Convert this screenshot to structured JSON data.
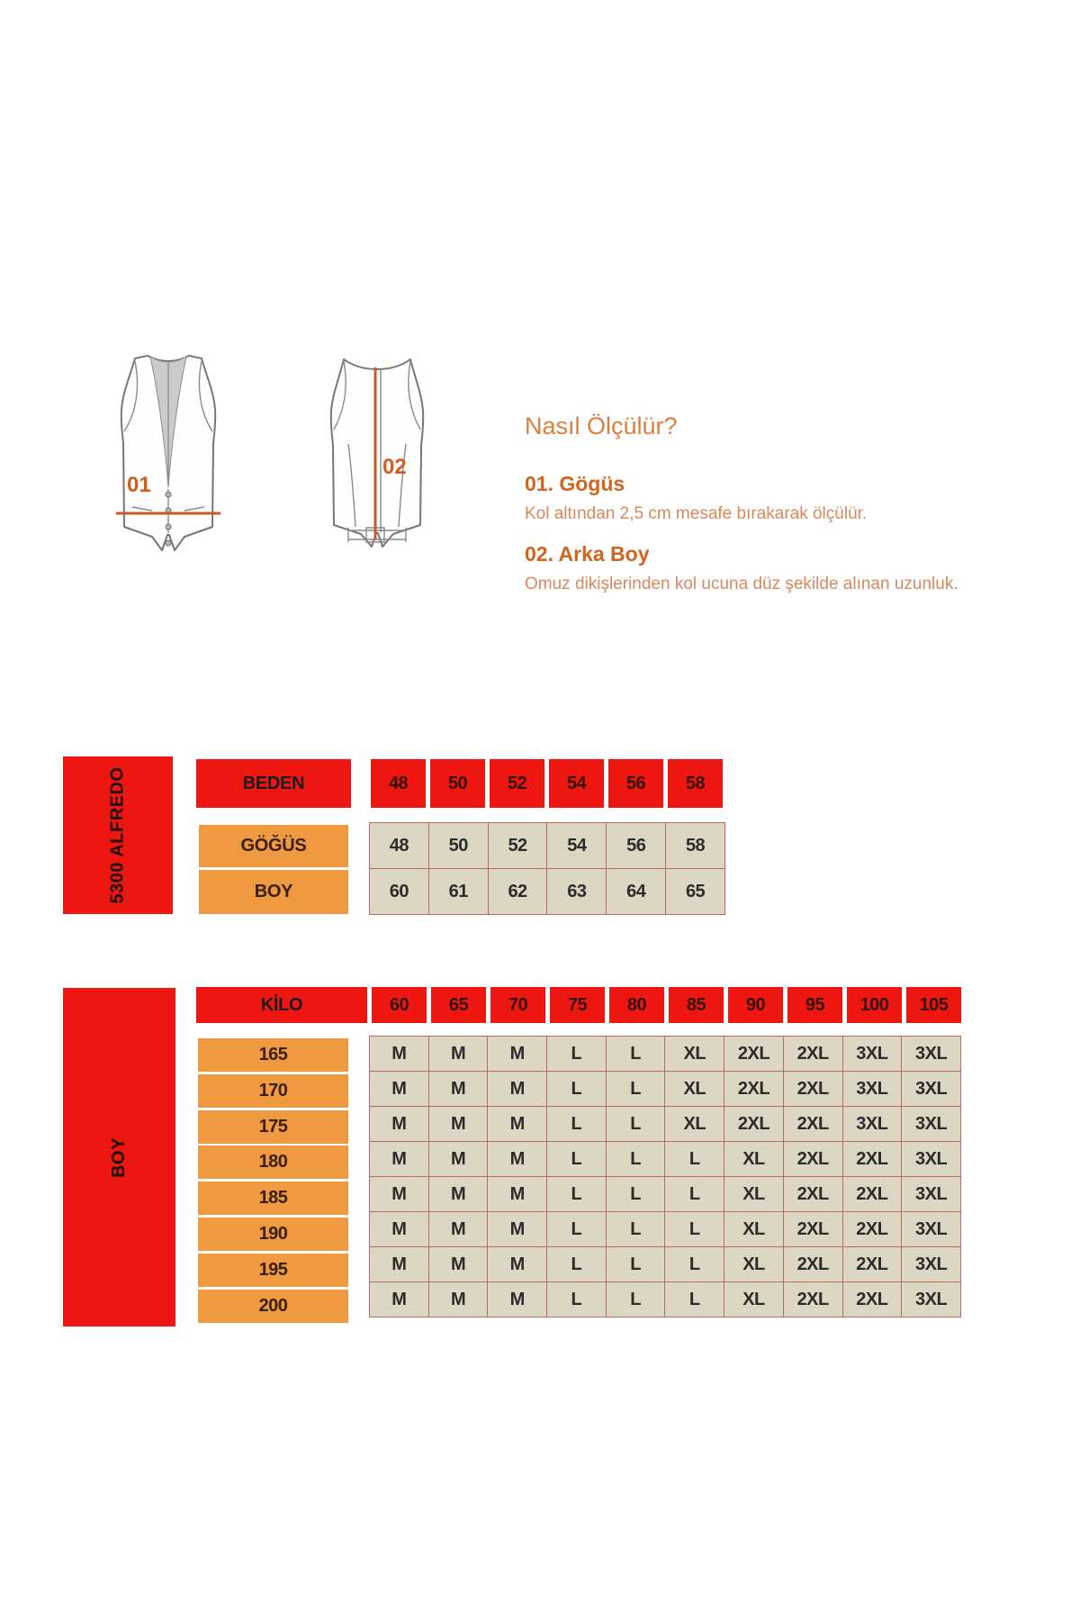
{
  "instructions": {
    "title": "Nasıl Ölçülür?",
    "items": [
      {
        "heading": "01. Gögüs",
        "body": "Kol altından 2,5 cm mesafe bırakarak ölçülür."
      },
      {
        "heading": "02. Arka Boy",
        "body": "Omuz dikişlerinden kol ucuna düz şekilde alınan uzunluk."
      }
    ]
  },
  "diagram": {
    "front_marker": "01",
    "back_marker": "02"
  },
  "product_table": {
    "product_code_label": "5300 ALFREDO",
    "beden": {
      "label": "BEDEN",
      "values": [
        "48",
        "50",
        "52",
        "54",
        "56",
        "58"
      ]
    },
    "gogus": {
      "label": "GÖĞÜS",
      "values": [
        "48",
        "50",
        "52",
        "54",
        "56",
        "58"
      ]
    },
    "boy": {
      "label": "BOY",
      "values": [
        "60",
        "61",
        "62",
        "63",
        "64",
        "65"
      ]
    }
  },
  "fit_table": {
    "sidebar_label": "BOY",
    "kilo_label": "KİLO",
    "kilo_values": [
      "60",
      "65",
      "70",
      "75",
      "80",
      "85",
      "90",
      "95",
      "100",
      "105"
    ],
    "rows": [
      {
        "height": "165",
        "sizes": [
          "M",
          "M",
          "M",
          "L",
          "L",
          "XL",
          "2XL",
          "2XL",
          "3XL",
          "3XL"
        ]
      },
      {
        "height": "170",
        "sizes": [
          "M",
          "M",
          "M",
          "L",
          "L",
          "XL",
          "2XL",
          "2XL",
          "3XL",
          "3XL"
        ]
      },
      {
        "height": "175",
        "sizes": [
          "M",
          "M",
          "M",
          "L",
          "L",
          "XL",
          "2XL",
          "2XL",
          "3XL",
          "3XL"
        ]
      },
      {
        "height": "180",
        "sizes": [
          "M",
          "M",
          "M",
          "L",
          "L",
          "L",
          "XL",
          "2XL",
          "2XL",
          "3XL"
        ]
      },
      {
        "height": "185",
        "sizes": [
          "M",
          "M",
          "M",
          "L",
          "L",
          "L",
          "XL",
          "2XL",
          "2XL",
          "3XL"
        ]
      },
      {
        "height": "190",
        "sizes": [
          "M",
          "M",
          "M",
          "L",
          "L",
          "L",
          "XL",
          "2XL",
          "2XL",
          "3XL"
        ]
      },
      {
        "height": "195",
        "sizes": [
          "M",
          "M",
          "M",
          "L",
          "L",
          "L",
          "XL",
          "2XL",
          "2XL",
          "3XL"
        ]
      },
      {
        "height": "200",
        "sizes": [
          "M",
          "M",
          "M",
          "L",
          "L",
          "L",
          "XL",
          "2XL",
          "2XL",
          "3XL"
        ]
      }
    ]
  },
  "colors": {
    "red": "#ee1610",
    "orange": "#ef9a40",
    "cell_beige": "#dcd7c3",
    "cell_border": "#b96a60",
    "accent_orange": "#d2641c",
    "measure_line": "#c85a28"
  }
}
